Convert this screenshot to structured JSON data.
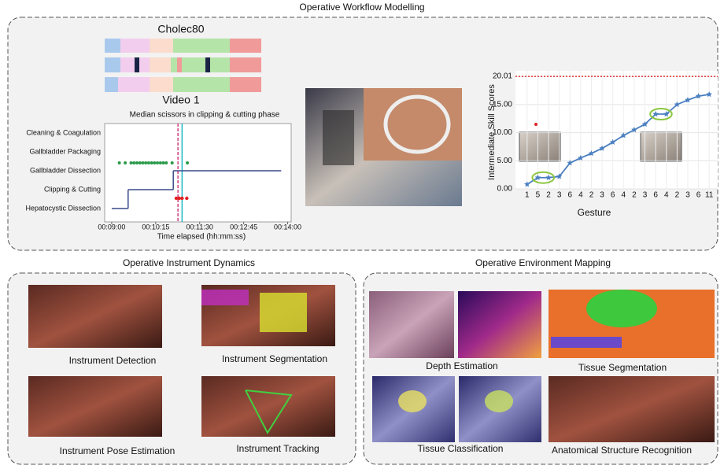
{
  "title": "Operative Workflow Modelling",
  "workflow": {
    "dataset": "Cholec80",
    "video": "Video 1",
    "timeline": {
      "title": "Median scissors in clipping & cutting phase",
      "phases": [
        "Hepatocystic Dissection",
        "Clipping & Cutting",
        "Gallbladder Dissection",
        "Gallbladder Packaging",
        "Cleaning & Coagulation"
      ],
      "xlabel": "Time elapsed (hh:mm:ss)",
      "xlim": [
        528,
        846
      ],
      "xticks": [
        {
          "value": 540,
          "label": "00:09:00"
        },
        {
          "value": 615,
          "label": "00:10:15"
        },
        {
          "value": 690,
          "label": "00:11:30"
        },
        {
          "value": 765,
          "label": "00:12:45"
        },
        {
          "value": 840,
          "label": "00:14:00"
        }
      ],
      "phase_steps": [
        {
          "phase": 0,
          "start": 540,
          "end": 568
        },
        {
          "phase": 1,
          "start": 568,
          "end": 645
        },
        {
          "phase": 2,
          "start": 645,
          "end": 829
        }
      ],
      "detections": [
        553,
        563,
        573,
        578,
        583,
        588,
        593,
        598,
        603,
        608,
        613,
        618,
        623,
        628,
        633,
        643,
        669
      ],
      "cuts": [
        650,
        655,
        660,
        668
      ],
      "markers": [
        653,
        660
      ]
    },
    "skill": {
      "type": "line",
      "ylabel": "Intermediate Skill Scores",
      "xlabel": "Gesture",
      "categories": [
        "1",
        "5",
        "2",
        "3",
        "6",
        "4",
        "2",
        "3",
        "6",
        "4",
        "2",
        "3",
        "6",
        "4",
        "2",
        "3",
        "6",
        "11"
      ],
      "values": [
        0.8,
        2.0,
        2.0,
        2.2,
        4.6,
        5.5,
        6.3,
        7.2,
        8.3,
        9.5,
        10.5,
        11.5,
        13.3,
        13.3,
        15.0,
        15.8,
        16.5,
        16.8
      ],
      "ylim": [
        0,
        21
      ],
      "yticks": [
        {
          "value": 0,
          "label": "0.00"
        },
        {
          "value": 5,
          "label": "5.00"
        },
        {
          "value": 10,
          "label": "10.00"
        },
        {
          "value": 15,
          "label": "15.00"
        },
        {
          "value": 20.01,
          "label": "20.01"
        }
      ],
      "threshold": 20.01,
      "color": "#4a7fc0"
    }
  },
  "dynamics": {
    "title": "Operative Instrument Dynamics",
    "panels": [
      "Instrument Detection",
      "Instrument Segmentation",
      "Instrument Pose Estimation",
      "Instrument Tracking"
    ]
  },
  "environment": {
    "title": "Operative Environment Mapping",
    "panels": [
      "Depth Estimation",
      "Tissue Segmentation",
      "Tissue Classification",
      "Anatomical Structure Recognition"
    ]
  }
}
